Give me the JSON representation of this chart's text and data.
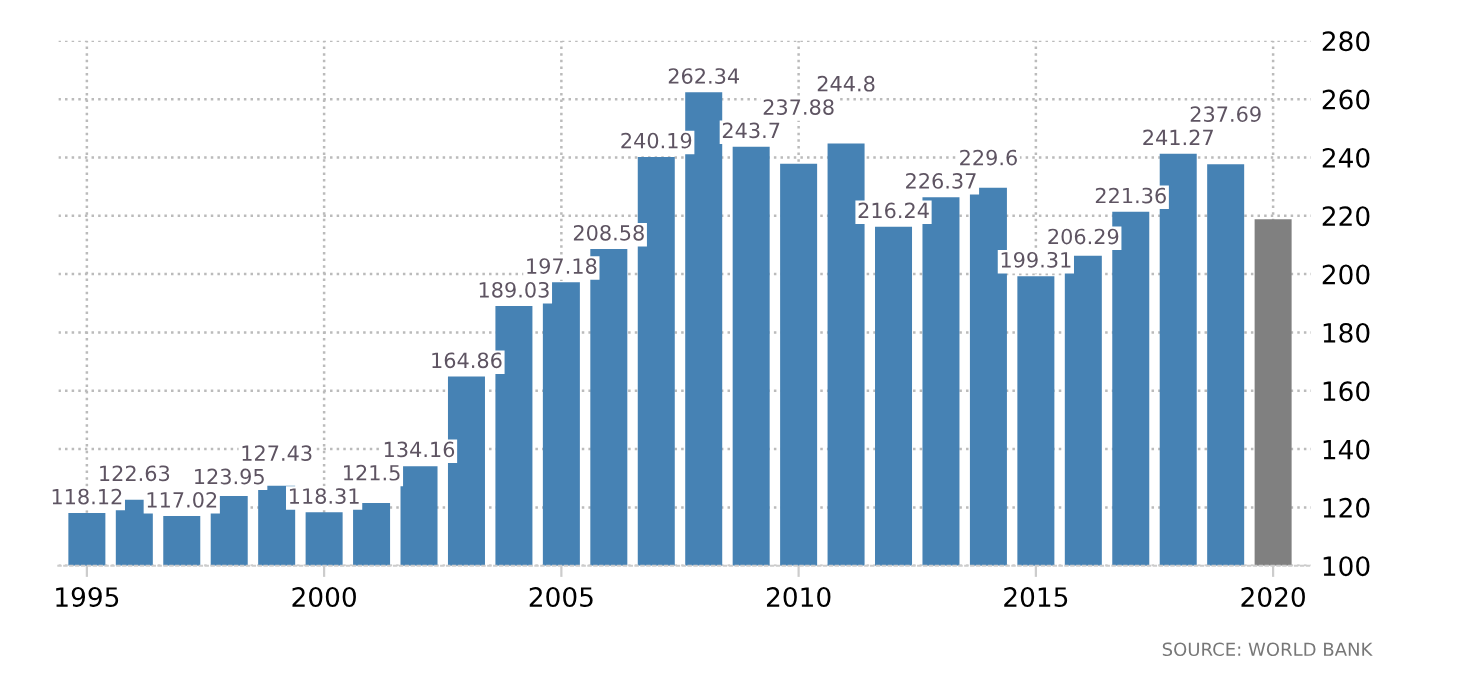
{
  "chart_data": {
    "type": "bar",
    "x": [
      1995,
      1996,
      1997,
      1998,
      1999,
      2000,
      2001,
      2002,
      2003,
      2004,
      2005,
      2006,
      2007,
      2008,
      2009,
      2010,
      2011,
      2012,
      2013,
      2014,
      2015,
      2016,
      2017,
      2018,
      2019,
      2020
    ],
    "values": [
      118.12,
      122.63,
      117.02,
      123.95,
      127.43,
      118.31,
      121.5,
      134.16,
      164.86,
      189.03,
      197.18,
      208.58,
      240.19,
      262.34,
      243.7,
      237.88,
      244.8,
      216.24,
      226.37,
      229.6,
      199.31,
      206.29,
      221.36,
      241.27,
      237.69,
      218.8
    ],
    "value_labels": [
      "118.12",
      "122.63",
      "117.02",
      "123.95",
      "127.43",
      "118.31",
      "121.5",
      "134.16",
      "164.86",
      "189.03",
      "197.18",
      "208.58",
      "240.19",
      "262.34",
      "243.7",
      "237.88",
      "244.8",
      "216.24",
      "226.37",
      "229.6",
      "199.31",
      "206.29",
      "221.36",
      "241.27",
      "237.69",
      null
    ],
    "colors": [
      "#4682b4",
      "#4682b4",
      "#4682b4",
      "#4682b4",
      "#4682b4",
      "#4682b4",
      "#4682b4",
      "#4682b4",
      "#4682b4",
      "#4682b4",
      "#4682b4",
      "#4682b4",
      "#4682b4",
      "#4682b4",
      "#4682b4",
      "#4682b4",
      "#4682b4",
      "#4682b4",
      "#4682b4",
      "#4682b4",
      "#4682b4",
      "#4682b4",
      "#4682b4",
      "#4682b4",
      "#4682b4",
      "#808080"
    ],
    "xlim": [
      1994.4,
      2020.8
    ],
    "xticks": [
      1995,
      2000,
      2005,
      2010,
      2015,
      2020
    ],
    "ylim": [
      100,
      280
    ],
    "yticks": [
      100,
      120,
      140,
      160,
      180,
      200,
      220,
      240,
      260,
      280
    ],
    "grid": true,
    "annotations": [
      "SOURCE: WORLD BANK"
    ]
  }
}
